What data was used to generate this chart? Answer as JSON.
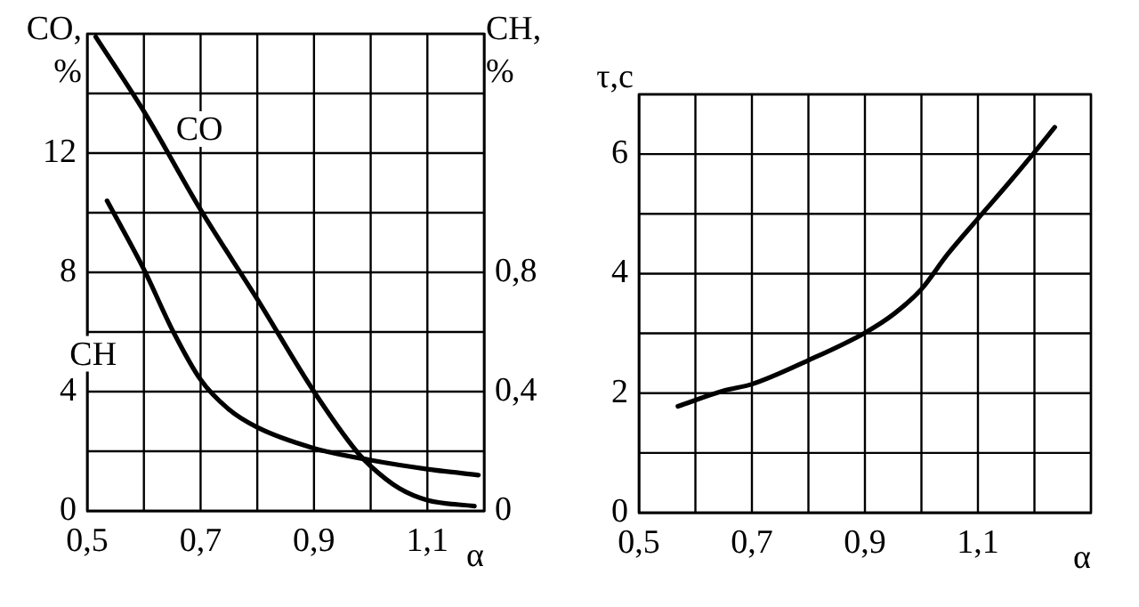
{
  "chart_data": [
    {
      "type": "line",
      "ylabel": "CO, %",
      "y2label": "CH, %",
      "xlabel": "α",
      "xlim": [
        0.5,
        1.2
      ],
      "xticks": [
        {
          "value": 0.5,
          "label": "0,5"
        },
        {
          "value": 0.6,
          "label": null
        },
        {
          "value": 0.7,
          "label": "0,7"
        },
        {
          "value": 0.8,
          "label": null
        },
        {
          "value": 0.9,
          "label": "0,9"
        },
        {
          "value": 1.0,
          "label": null
        },
        {
          "value": 1.1,
          "label": "1,1"
        },
        {
          "value": 1.2,
          "label": null
        }
      ],
      "ylim": [
        0,
        16
      ],
      "yticks": [
        0,
        {
          "value": 2,
          "label": null
        },
        4,
        {
          "value": 6,
          "label": null
        },
        8,
        {
          "value": 10,
          "label": null
        },
        12,
        {
          "value": 14,
          "label": null
        },
        {
          "value": 16,
          "label": null
        }
      ],
      "y2lim": [
        0,
        1.6
      ],
      "y2ticks": [
        0,
        {
          "value": 0.4,
          "label": "0,4"
        },
        {
          "value": 0.8,
          "label": "0,8"
        }
      ],
      "grid": true,
      "legend": false,
      "marker": "none",
      "line_style": "solid",
      "series": [
        {
          "name": "CO",
          "color": "#000000",
          "x": [
            0.515,
            0.6,
            0.7,
            0.8,
            0.9,
            0.975,
            1.0,
            1.05,
            1.1,
            1.183
          ],
          "values": [
            15.9,
            13.4,
            10.1,
            7.1,
            4.0,
            2.0,
            1.5,
            0.76,
            0.36,
            0.16
          ]
        },
        {
          "name": "CH",
          "color": "#000000",
          "axis": "y2",
          "x": [
            0.535,
            0.6,
            0.652,
            0.7,
            0.75,
            0.8,
            0.9,
            1.0,
            1.1,
            1.19
          ],
          "values": [
            1.04,
            0.81,
            0.6,
            0.44,
            0.34,
            0.28,
            0.21,
            0.17,
            0.14,
            0.12
          ]
        }
      ]
    },
    {
      "type": "line",
      "ylabel": "τ,c",
      "xlabel": "α",
      "xlim": [
        0.5,
        1.3
      ],
      "xticks": [
        {
          "value": 0.5,
          "label": "0,5"
        },
        {
          "value": 0.6,
          "label": null
        },
        {
          "value": 0.7,
          "label": "0,7"
        },
        {
          "value": 0.8,
          "label": null
        },
        {
          "value": 0.9,
          "label": "0,9"
        },
        {
          "value": 1.0,
          "label": null
        },
        {
          "value": 1.1,
          "label": "1,1"
        },
        {
          "value": 1.2,
          "label": null
        },
        {
          "value": 1.3,
          "label": null
        }
      ],
      "ylim": [
        0,
        7
      ],
      "yticks": [
        0,
        {
          "value": 1,
          "label": null
        },
        2,
        {
          "value": 3,
          "label": null
        },
        4,
        {
          "value": 5,
          "label": null
        },
        6,
        {
          "value": 7,
          "label": null
        }
      ],
      "grid": true,
      "legend": false,
      "marker": "none",
      "line_style": "solid",
      "series": [
        {
          "color": "#000000",
          "x": [
            0.569,
            0.65,
            0.7,
            0.8,
            0.9,
            0.952,
            1.0,
            1.046,
            1.1,
            1.154,
            1.2,
            1.236
          ],
          "values": [
            1.78,
            2.04,
            2.15,
            2.55,
            3.01,
            3.33,
            3.74,
            4.32,
            4.92,
            5.51,
            6.03,
            6.45
          ]
        }
      ]
    }
  ]
}
